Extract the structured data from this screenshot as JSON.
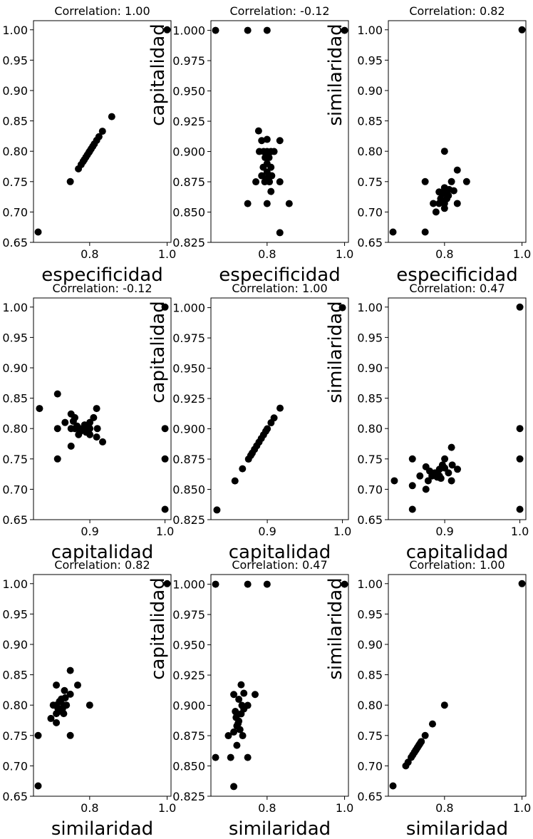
{
  "chart_data": [
    {
      "type": "scatter",
      "title": "Correlation: 1.00",
      "xlabel": "especificidad",
      "ylabel": "",
      "xlim": [
        0.655,
        1.01
      ],
      "ylim": [
        0.65,
        1.015
      ],
      "xticks": [
        0.8,
        1.0
      ],
      "xtick_labels": [
        "0.8",
        "1.0"
      ],
      "yticks": [
        0.65,
        0.7,
        0.75,
        0.8,
        0.85,
        0.9,
        0.95,
        1.0
      ],
      "ytick_labels": [
        "0.65",
        "0.70",
        "0.75",
        "0.80",
        "0.85",
        "0.90",
        "0.95",
        "1.00"
      ],
      "points": [
        [
          0.667,
          0.667
        ],
        [
          0.75,
          0.75
        ],
        [
          0.771,
          0.771
        ],
        [
          0.778,
          0.778
        ],
        [
          0.783,
          0.783
        ],
        [
          0.786,
          0.786
        ],
        [
          0.79,
          0.79
        ],
        [
          0.794,
          0.794
        ],
        [
          0.798,
          0.798
        ],
        [
          0.8,
          0.8
        ],
        [
          0.804,
          0.804
        ],
        [
          0.808,
          0.808
        ],
        [
          0.812,
          0.812
        ],
        [
          0.818,
          0.818
        ],
        [
          0.824,
          0.824
        ],
        [
          0.833,
          0.833
        ],
        [
          0.857,
          0.857
        ],
        [
          1.0,
          1.0
        ]
      ]
    },
    {
      "type": "scatter",
      "title": "Correlation: -0.12",
      "xlabel": "especificidad",
      "ylabel": "capitalidad",
      "xlim": [
        0.655,
        1.01
      ],
      "ylim": [
        0.825,
        1.008
      ],
      "xticks": [
        0.8,
        1.0
      ],
      "xtick_labels": [
        "0.8",
        "1.0"
      ],
      "yticks": [
        0.825,
        0.85,
        0.875,
        0.9,
        0.925,
        0.95,
        0.975,
        1.0
      ],
      "ytick_labels": [
        "0.825",
        "0.850",
        "0.875",
        "0.900",
        "0.925",
        "0.950",
        "0.975",
        "1.000"
      ],
      "points": [
        [
          0.667,
          1.0
        ],
        [
          0.75,
          1.0
        ],
        [
          0.8,
          1.0
        ],
        [
          1.0,
          1.0
        ],
        [
          0.75,
          0.857
        ],
        [
          0.8,
          0.857
        ],
        [
          0.857,
          0.857
        ],
        [
          0.833,
          0.833
        ],
        [
          0.771,
          0.875
        ],
        [
          0.833,
          0.875
        ],
        [
          0.81,
          0.867
        ],
        [
          0.786,
          0.909
        ],
        [
          0.833,
          0.909
        ],
        [
          0.778,
          0.917
        ],
        [
          0.8,
          0.91
        ],
        [
          0.8,
          0.9
        ],
        [
          0.791,
          0.9
        ],
        [
          0.81,
          0.9
        ],
        [
          0.795,
          0.895
        ],
        [
          0.805,
          0.895
        ],
        [
          0.8,
          0.89
        ],
        [
          0.79,
          0.887
        ],
        [
          0.81,
          0.887
        ],
        [
          0.8,
          0.883
        ],
        [
          0.786,
          0.88
        ],
        [
          0.812,
          0.88
        ],
        [
          0.8,
          0.878
        ],
        [
          0.794,
          0.875
        ],
        [
          0.806,
          0.875
        ],
        [
          0.818,
          0.9
        ],
        [
          0.78,
          0.9
        ]
      ]
    },
    {
      "type": "scatter",
      "title": "Correlation: 0.82",
      "xlabel": "especificidad",
      "ylabel": "similaridad",
      "xlim": [
        0.655,
        1.01
      ],
      "ylim": [
        0.65,
        1.015
      ],
      "xticks": [
        0.8,
        1.0
      ],
      "xtick_labels": [
        "0.8",
        "1.0"
      ],
      "yticks": [
        0.65,
        0.7,
        0.75,
        0.8,
        0.85,
        0.9,
        0.95,
        1.0
      ],
      "ytick_labels": [
        "0.65",
        "0.70",
        "0.75",
        "0.80",
        "0.85",
        "0.90",
        "0.95",
        "1.00"
      ],
      "points": [
        [
          0.667,
          0.667
        ],
        [
          0.75,
          0.667
        ],
        [
          0.75,
          0.75
        ],
        [
          0.8,
          0.8
        ],
        [
          0.833,
          0.769
        ],
        [
          0.857,
          0.75
        ],
        [
          0.833,
          0.714
        ],
        [
          1.0,
          1.0
        ],
        [
          0.771,
          0.714
        ],
        [
          0.778,
          0.7
        ],
        [
          0.786,
          0.714
        ],
        [
          0.79,
          0.722
        ],
        [
          0.794,
          0.73
        ],
        [
          0.8,
          0.733
        ],
        [
          0.8,
          0.74
        ],
        [
          0.81,
          0.727
        ],
        [
          0.812,
          0.737
        ],
        [
          0.818,
          0.75
        ],
        [
          0.824,
          0.735
        ],
        [
          0.8,
          0.706
        ],
        [
          0.786,
          0.733
        ],
        [
          0.806,
          0.722
        ],
        [
          0.8,
          0.714
        ],
        [
          0.795,
          0.718
        ]
      ]
    },
    {
      "type": "scatter",
      "title": "Correlation: -0.12",
      "xlabel": "capitalidad",
      "ylabel": "",
      "xlim": [
        0.825,
        1.008
      ],
      "ylim": [
        0.65,
        1.015
      ],
      "xticks": [
        0.9,
        1.0
      ],
      "xtick_labels": [
        "0.9",
        "1.0"
      ],
      "yticks": [
        0.65,
        0.7,
        0.75,
        0.8,
        0.85,
        0.9,
        0.95,
        1.0
      ],
      "ytick_labels": [
        "0.65",
        "0.70",
        "0.75",
        "0.80",
        "0.85",
        "0.90",
        "0.95",
        "1.00"
      ],
      "points": [
        [
          0.833,
          0.833
        ],
        [
          0.857,
          0.857
        ],
        [
          0.857,
          0.8
        ],
        [
          0.857,
          0.75
        ],
        [
          1.0,
          1.0
        ],
        [
          1.0,
          0.8
        ],
        [
          1.0,
          0.75
        ],
        [
          1.0,
          0.667
        ],
        [
          0.867,
          0.81
        ],
        [
          0.875,
          0.771
        ],
        [
          0.875,
          0.824
        ],
        [
          0.909,
          0.786
        ],
        [
          0.909,
          0.833
        ],
        [
          0.917,
          0.778
        ],
        [
          0.88,
          0.8
        ],
        [
          0.883,
          0.804
        ],
        [
          0.887,
          0.795
        ],
        [
          0.89,
          0.8
        ],
        [
          0.895,
          0.794
        ],
        [
          0.9,
          0.8
        ],
        [
          0.9,
          0.81
        ],
        [
          0.9,
          0.79
        ],
        [
          0.878,
          0.812
        ],
        [
          0.893,
          0.806
        ],
        [
          0.905,
          0.818
        ],
        [
          0.885,
          0.79
        ],
        [
          0.897,
          0.8
        ],
        [
          0.875,
          0.8
        ],
        [
          0.91,
          0.8
        ],
        [
          0.88,
          0.818
        ]
      ]
    },
    {
      "type": "scatter",
      "title": "Correlation: 1.00",
      "xlabel": "capitalidad",
      "ylabel": "capitalidad",
      "xlim": [
        0.825,
        1.008
      ],
      "ylim": [
        0.825,
        1.008
      ],
      "xticks": [
        0.9,
        1.0
      ],
      "xtick_labels": [
        "0.9",
        "1.0"
      ],
      "yticks": [
        0.825,
        0.85,
        0.875,
        0.9,
        0.925,
        0.95,
        0.975,
        1.0
      ],
      "ytick_labels": [
        "0.825",
        "0.850",
        "0.875",
        "0.900",
        "0.925",
        "0.950",
        "0.975",
        "1.000"
      ],
      "points": [
        [
          0.833,
          0.833
        ],
        [
          0.857,
          0.857
        ],
        [
          0.867,
          0.867
        ],
        [
          0.875,
          0.875
        ],
        [
          0.878,
          0.878
        ],
        [
          0.88,
          0.88
        ],
        [
          0.883,
          0.883
        ],
        [
          0.886,
          0.886
        ],
        [
          0.889,
          0.889
        ],
        [
          0.892,
          0.892
        ],
        [
          0.895,
          0.895
        ],
        [
          0.898,
          0.898
        ],
        [
          0.9,
          0.9
        ],
        [
          0.905,
          0.905
        ],
        [
          0.909,
          0.909
        ],
        [
          0.917,
          0.917
        ],
        [
          1.0,
          1.0
        ]
      ]
    },
    {
      "type": "scatter",
      "title": "Correlation: 0.47",
      "xlabel": "capitalidad",
      "ylabel": "similaridad",
      "xlim": [
        0.825,
        1.008
      ],
      "ylim": [
        0.65,
        1.015
      ],
      "xticks": [
        0.9,
        1.0
      ],
      "xtick_labels": [
        "0.9",
        "1.0"
      ],
      "yticks": [
        0.65,
        0.7,
        0.75,
        0.8,
        0.85,
        0.9,
        0.95,
        1.0
      ],
      "ytick_labels": [
        "0.65",
        "0.70",
        "0.75",
        "0.80",
        "0.85",
        "0.90",
        "0.95",
        "1.00"
      ],
      "points": [
        [
          0.833,
          0.714
        ],
        [
          0.857,
          0.75
        ],
        [
          0.857,
          0.706
        ],
        [
          0.857,
          0.667
        ],
        [
          1.0,
          1.0
        ],
        [
          1.0,
          0.8
        ],
        [
          1.0,
          0.75
        ],
        [
          1.0,
          0.667
        ],
        [
          0.867,
          0.722
        ],
        [
          0.875,
          0.7
        ],
        [
          0.875,
          0.737
        ],
        [
          0.909,
          0.769
        ],
        [
          0.909,
          0.714
        ],
        [
          0.917,
          0.733
        ],
        [
          0.88,
          0.73
        ],
        [
          0.883,
          0.722
        ],
        [
          0.887,
          0.727
        ],
        [
          0.89,
          0.72
        ],
        [
          0.893,
          0.733
        ],
        [
          0.897,
          0.74
        ],
        [
          0.9,
          0.75
        ],
        [
          0.9,
          0.735
        ],
        [
          0.878,
          0.714
        ],
        [
          0.895,
          0.718
        ],
        [
          0.905,
          0.727
        ],
        [
          0.885,
          0.725
        ],
        [
          0.893,
          0.722
        ],
        [
          0.91,
          0.74
        ]
      ]
    },
    {
      "type": "scatter",
      "title": "Correlation: 0.82",
      "xlabel": "similaridad",
      "ylabel": "",
      "xlim": [
        0.655,
        1.01
      ],
      "ylim": [
        0.65,
        1.015
      ],
      "xticks": [
        0.8,
        1.0
      ],
      "xtick_labels": [
        "0.8",
        "1.0"
      ],
      "yticks": [
        0.65,
        0.7,
        0.75,
        0.8,
        0.85,
        0.9,
        0.95,
        1.0
      ],
      "ytick_labels": [
        "0.65",
        "0.70",
        "0.75",
        "0.80",
        "0.85",
        "0.90",
        "0.95",
        "1.00"
      ],
      "points": [
        [
          0.667,
          0.667
        ],
        [
          0.667,
          0.75
        ],
        [
          0.75,
          0.75
        ],
        [
          0.8,
          0.8
        ],
        [
          0.769,
          0.833
        ],
        [
          0.75,
          0.857
        ],
        [
          0.714,
          0.833
        ],
        [
          1.0,
          1.0
        ],
        [
          0.714,
          0.771
        ],
        [
          0.7,
          0.778
        ],
        [
          0.714,
          0.786
        ],
        [
          0.722,
          0.79
        ],
        [
          0.73,
          0.794
        ],
        [
          0.733,
          0.8
        ],
        [
          0.74,
          0.8
        ],
        [
          0.727,
          0.81
        ],
        [
          0.737,
          0.812
        ],
        [
          0.75,
          0.818
        ],
        [
          0.735,
          0.824
        ],
        [
          0.706,
          0.8
        ],
        [
          0.733,
          0.786
        ],
        [
          0.722,
          0.806
        ],
        [
          0.714,
          0.8
        ],
        [
          0.718,
          0.795
        ]
      ]
    },
    {
      "type": "scatter",
      "title": "Correlation: 0.47",
      "xlabel": "similaridad",
      "ylabel": "capitalidad",
      "xlim": [
        0.655,
        1.01
      ],
      "ylim": [
        0.825,
        1.008
      ],
      "xticks": [
        0.8,
        1.0
      ],
      "xtick_labels": [
        "0.8",
        "1.0"
      ],
      "yticks": [
        0.825,
        0.85,
        0.875,
        0.9,
        0.925,
        0.95,
        0.975,
        1.0
      ],
      "ytick_labels": [
        "0.825",
        "0.850",
        "0.875",
        "0.900",
        "0.925",
        "0.950",
        "0.975",
        "1.000"
      ],
      "points": [
        [
          0.714,
          0.833
        ],
        [
          0.75,
          0.857
        ],
        [
          0.706,
          0.857
        ],
        [
          0.667,
          0.857
        ],
        [
          1.0,
          1.0
        ],
        [
          0.8,
          1.0
        ],
        [
          0.75,
          1.0
        ],
        [
          0.667,
          1.0
        ],
        [
          0.722,
          0.867
        ],
        [
          0.7,
          0.875
        ],
        [
          0.737,
          0.875
        ],
        [
          0.769,
          0.909
        ],
        [
          0.714,
          0.909
        ],
        [
          0.733,
          0.917
        ],
        [
          0.73,
          0.88
        ],
        [
          0.722,
          0.883
        ],
        [
          0.727,
          0.887
        ],
        [
          0.72,
          0.89
        ],
        [
          0.733,
          0.893
        ],
        [
          0.74,
          0.897
        ],
        [
          0.75,
          0.9
        ],
        [
          0.735,
          0.9
        ],
        [
          0.714,
          0.878
        ],
        [
          0.718,
          0.895
        ],
        [
          0.727,
          0.905
        ],
        [
          0.725,
          0.885
        ],
        [
          0.722,
          0.893
        ],
        [
          0.74,
          0.91
        ]
      ]
    },
    {
      "type": "scatter",
      "title": "Correlation: 1.00",
      "xlabel": "similaridad",
      "ylabel": "similaridad",
      "xlim": [
        0.655,
        1.01
      ],
      "ylim": [
        0.65,
        1.015
      ],
      "xticks": [
        0.8,
        1.0
      ],
      "xtick_labels": [
        "0.8",
        "1.0"
      ],
      "yticks": [
        0.65,
        0.7,
        0.75,
        0.8,
        0.85,
        0.9,
        0.95,
        1.0
      ],
      "ytick_labels": [
        "0.65",
        "0.70",
        "0.75",
        "0.80",
        "0.85",
        "0.90",
        "0.95",
        "1.00"
      ],
      "points": [
        [
          0.667,
          0.667
        ],
        [
          0.7,
          0.7
        ],
        [
          0.706,
          0.706
        ],
        [
          0.714,
          0.714
        ],
        [
          0.718,
          0.718
        ],
        [
          0.722,
          0.722
        ],
        [
          0.725,
          0.725
        ],
        [
          0.727,
          0.727
        ],
        [
          0.73,
          0.73
        ],
        [
          0.733,
          0.733
        ],
        [
          0.735,
          0.735
        ],
        [
          0.737,
          0.737
        ],
        [
          0.74,
          0.74
        ],
        [
          0.75,
          0.75
        ],
        [
          0.769,
          0.769
        ],
        [
          0.8,
          0.8
        ],
        [
          1.0,
          1.0
        ]
      ]
    }
  ]
}
